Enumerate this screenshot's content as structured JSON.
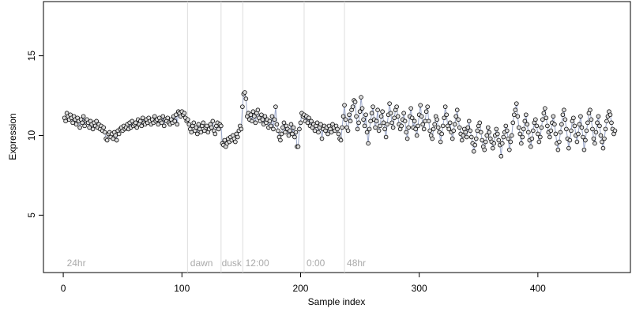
{
  "chart_data": {
    "type": "scatter",
    "xlabel": "Sample index",
    "ylabel": "Expression",
    "xlim": [
      -16.7,
      478
    ],
    "ylim": [
      1.4,
      18.4
    ],
    "xticks": [
      0,
      100,
      200,
      300,
      400
    ],
    "yticks": [
      5,
      10,
      15
    ],
    "vlines": [
      104.7,
      133,
      151.3,
      203,
      237
    ],
    "annotations": [
      {
        "x": 3,
        "y": 2,
        "text": "24hr"
      },
      {
        "x": 107,
        "y": 2,
        "text": "dawn"
      },
      {
        "x": 133.5,
        "y": 2,
        "text": "dusk"
      },
      {
        "x": 153.5,
        "y": 2,
        "text": "12:00"
      },
      {
        "x": 205,
        "y": 2,
        "text": "0:00"
      },
      {
        "x": 239,
        "y": 2,
        "text": "48hr"
      }
    ],
    "point_fill": "#dddddd",
    "line_color": "#9aa6c8",
    "x": [
      1,
      2,
      3,
      4,
      5,
      6,
      7,
      8,
      9,
      10,
      11,
      12,
      13,
      14,
      15,
      16,
      17,
      18,
      19,
      20,
      21,
      22,
      23,
      24,
      25,
      26,
      27,
      28,
      29,
      30,
      31,
      32,
      33,
      34,
      35,
      36,
      37,
      38,
      39,
      40,
      41,
      42,
      43,
      44,
      45,
      46,
      47,
      48,
      49,
      50,
      51,
      52,
      53,
      54,
      55,
      56,
      57,
      58,
      59,
      60,
      61,
      62,
      63,
      64,
      65,
      66,
      67,
      68,
      69,
      70,
      71,
      72,
      73,
      74,
      75,
      76,
      77,
      78,
      79,
      80,
      81,
      82,
      83,
      84,
      85,
      86,
      87,
      88,
      89,
      90,
      91,
      92,
      93,
      94,
      95,
      96,
      97,
      98,
      99,
      100,
      101,
      102,
      103,
      104,
      105,
      106,
      107,
      108,
      109,
      110,
      111,
      112,
      113,
      114,
      115,
      116,
      117,
      118,
      119,
      120,
      121,
      122,
      123,
      124,
      125,
      126,
      127,
      128,
      129,
      130,
      131,
      132,
      133,
      134,
      135,
      136,
      137,
      138,
      139,
      140,
      141,
      142,
      143,
      144,
      145,
      146,
      147,
      148,
      149,
      150,
      151,
      152,
      153,
      154,
      155,
      156,
      157,
      158,
      159,
      160,
      161,
      162,
      163,
      164,
      165,
      166,
      167,
      168,
      169,
      170,
      171,
      172,
      173,
      174,
      175,
      176,
      177,
      178,
      179,
      180,
      181,
      182,
      183,
      184,
      185,
      186,
      187,
      188,
      189,
      190,
      191,
      192,
      193,
      194,
      195,
      196,
      197,
      198,
      199,
      200,
      201,
      202,
      203,
      204,
      205,
      206,
      207,
      208,
      209,
      210,
      211,
      212,
      213,
      214,
      215,
      216,
      217,
      218,
      219,
      220,
      221,
      222,
      223,
      224,
      225,
      226,
      227,
      228,
      229,
      230,
      231,
      232,
      233,
      234,
      235,
      236,
      237,
      238,
      239,
      240,
      241,
      242,
      243,
      244,
      245,
      246,
      247,
      248,
      249,
      250,
      251,
      252,
      253,
      254,
      255,
      256,
      257,
      258,
      259,
      260,
      261,
      262,
      263,
      264,
      265,
      266,
      267,
      268,
      269,
      270,
      271,
      272,
      273,
      274,
      275,
      276,
      277,
      278,
      279,
      280,
      281,
      282,
      283,
      284,
      285,
      286,
      287,
      288,
      289,
      290,
      291,
      292,
      293,
      294,
      295,
      296,
      297,
      298,
      299,
      300,
      301,
      302,
      303,
      304,
      305,
      306,
      307,
      308,
      309,
      310,
      311,
      312,
      313,
      314,
      315,
      316,
      317,
      318,
      319,
      320,
      321,
      322,
      323,
      324,
      325,
      326,
      327,
      328,
      329,
      330,
      331,
      332,
      333,
      334,
      335,
      336,
      337,
      338,
      339,
      340,
      341,
      342,
      343,
      344,
      345,
      346,
      347,
      348,
      349,
      350,
      351,
      352,
      353,
      354,
      355,
      356,
      357,
      358,
      359,
      360,
      361,
      362,
      363,
      364,
      365,
      366,
      367,
      368,
      369,
      370,
      371,
      372,
      373,
      374,
      375,
      376,
      377,
      378,
      379,
      380,
      381,
      382,
      383,
      384,
      385,
      386,
      387,
      388,
      389,
      390,
      391,
      392,
      393,
      394,
      395,
      396,
      397,
      398,
      399,
      400,
      401,
      402,
      403,
      404,
      405,
      406,
      407,
      408,
      409,
      410,
      411,
      412,
      413,
      414,
      415,
      416,
      417,
      418,
      419,
      420,
      421,
      422,
      423,
      424,
      425,
      426,
      427,
      428,
      429,
      430,
      431,
      432,
      433,
      434,
      435,
      436,
      437,
      438,
      439,
      440,
      441,
      442,
      443,
      444,
      445,
      446,
      447,
      448,
      449,
      450,
      451,
      452,
      453,
      454,
      455,
      456,
      457,
      458,
      459,
      460,
      461,
      462,
      463,
      464,
      465
    ],
    "values": [
      11.1,
      10.9,
      11.4,
      11.2,
      11.0,
      11.3,
      11.1,
      10.8,
      11.2,
      11.0,
      10.7,
      11.1,
      10.9,
      10.5,
      11.0,
      10.8,
      11.2,
      10.6,
      10.9,
      11.0,
      10.8,
      10.5,
      10.9,
      10.7,
      10.4,
      10.8,
      10.6,
      10.9,
      10.5,
      10.7,
      10.4,
      10.6,
      10.3,
      10.5,
      10.2,
      9.8,
      9.7,
      10.1,
      10.2,
      9.9,
      10.1,
      9.8,
      10.2,
      10.0,
      9.7,
      10.3,
      10.1,
      10.4,
      10.5,
      10.3,
      10.6,
      10.4,
      10.5,
      10.7,
      10.4,
      10.8,
      10.5,
      10.9,
      10.6,
      10.7,
      10.8,
      10.5,
      11.0,
      10.7,
      10.9,
      10.6,
      11.1,
      10.8,
      10.7,
      11.0,
      10.8,
      11.1,
      10.9,
      10.7,
      11.0,
      10.8,
      11.2,
      10.9,
      11.0,
      10.7,
      11.1,
      10.9,
      10.8,
      11.2,
      10.6,
      11.0,
      10.9,
      11.1,
      10.8,
      10.7,
      11.0,
      10.8,
      11.2,
      10.9,
      11.3,
      10.7,
      11.5,
      11.4,
      11.2,
      11.5,
      11.3,
      11.4,
      11.1,
      10.9,
      11.0,
      10.7,
      10.4,
      10.2,
      10.6,
      10.8,
      10.3,
      10.5,
      10.1,
      10.7,
      10.4,
      10.2,
      10.6,
      10.8,
      10.3,
      10.5,
      10.6,
      10.2,
      10.4,
      10.7,
      10.5,
      10.9,
      10.3,
      10.1,
      10.6,
      10.8,
      10.4,
      10.7,
      10.6,
      9.5,
      9.4,
      9.7,
      9.3,
      9.5,
      9.8,
      9.6,
      9.9,
      9.7,
      10.0,
      9.8,
      9.6,
      10.1,
      9.9,
      10.3,
      10.6,
      10.4,
      11.8,
      12.6,
      12.7,
      12.3,
      11.2,
      11.4,
      11.0,
      11.3,
      10.9,
      11.5,
      11.2,
      10.8,
      11.4,
      11.6,
      11.1,
      10.9,
      11.3,
      11.0,
      10.7,
      11.2,
      10.8,
      11.0,
      10.5,
      10.9,
      10.6,
      11.2,
      10.4,
      11.0,
      11.8,
      10.7,
      10.3,
      9.9,
      9.7,
      10.1,
      10.5,
      10.8,
      10.2,
      10.6,
      10.4,
      10.0,
      10.3,
      10.7,
      10.1,
      10.5,
      9.9,
      10.2,
      9.3,
      9.3,
      10.4,
      10.8,
      11.4,
      11.2,
      11.3,
      10.9,
      11.2,
      10.8,
      11.1,
      10.6,
      10.9,
      10.5,
      10.7,
      10.3,
      10.6,
      10.8,
      10.2,
      10.5,
      10.7,
      9.8,
      10.4,
      10.6,
      10.3,
      10.5,
      10.1,
      10.6,
      10.4,
      10.2,
      10.7,
      10.5,
      10.3,
      10.6,
      10.4,
      10.1,
      9.8,
      9.7,
      10.5,
      11.2,
      11.9,
      11.0,
      10.5,
      10.3,
      11.3,
      10.9,
      11.6,
      11.8,
      12.2,
      12.1,
      11.2,
      10.4,
      10.8,
      11.5,
      12.4,
      11.7,
      11.0,
      10.6,
      11.3,
      10.2,
      9.5,
      10.4,
      10.9,
      11.4,
      11.8,
      11.0,
      10.5,
      10.9,
      11.6,
      10.3,
      10.6,
      11.2,
      11.5,
      10.8,
      10.4,
      9.9,
      10.7,
      11.3,
      12.0,
      11.4,
      10.8,
      10.5,
      11.1,
      11.6,
      11.8,
      11.2,
      10.7,
      10.4,
      10.6,
      11.0,
      11.4,
      10.9,
      10.2,
      9.8,
      10.5,
      11.2,
      11.7,
      11.1,
      10.5,
      10.9,
      10.4,
      10.0,
      10.6,
      11.3,
      11.9,
      11.2,
      10.7,
      10.4,
      10.9,
      11.5,
      11.8,
      10.9,
      10.3,
      10.0,
      9.8,
      10.4,
      10.7,
      11.2,
      11.0,
      10.5,
      10.2,
      9.6,
      10.1,
      10.6,
      11.1,
      11.8,
      11.3,
      10.6,
      10.4,
      10.8,
      10.2,
      9.8,
      10.3,
      10.7,
      11.2,
      11.6,
      11.0,
      10.5,
      10.1,
      9.7,
      10.0,
      10.4,
      10.2,
      9.9,
      10.5,
      10.9,
      10.3,
      9.9,
      9.5,
      9.0,
      9.4,
      9.8,
      10.3,
      10.6,
      10.8,
      10.2,
      9.7,
      9.3,
      9.1,
      9.6,
      10.0,
      10.5,
      10.2,
      9.8,
      9.6,
      9.2,
      9.5,
      10.0,
      10.4,
      10.1,
      9.7,
      9.4,
      8.7,
      9.5,
      9.9,
      10.2,
      10.6,
      10.3,
      9.8,
      9.1,
      9.6,
      10.0,
      10.8,
      11.3,
      11.6,
      12.0,
      11.2,
      10.5,
      10.1,
      9.5,
      9.9,
      10.4,
      10.9,
      11.3,
      10.7,
      10.2,
      9.7,
      9.3,
      9.8,
      10.3,
      10.8,
      11.0,
      10.6,
      10.1,
      9.6,
      9.9,
      10.5,
      11.0,
      11.4,
      11.7,
      11.1,
      10.6,
      10.2,
      9.9,
      10.3,
      10.8,
      11.2,
      10.7,
      10.1,
      9.5,
      9.1,
      9.6,
      10.2,
      10.7,
      11.3,
      11.6,
      11.0,
      10.4,
      9.8,
      9.2,
      9.7,
      10.3,
      10.9,
      11.1,
      10.6,
      10.0,
      9.6,
      10.1,
      10.7,
      11.2,
      10.5,
      9.9,
      9.1,
      9.7,
      10.3,
      10.8,
      11.4,
      11.6,
      11.0,
      10.4,
      9.8,
      9.5,
      10.2,
      10.8,
      11.2,
      10.6,
      10.0,
      9.6,
      9.2,
      9.8,
      10.4,
      10.9,
      11.2,
      11.5,
      11.3,
      10.8,
      10.4,
      10.1,
      10.3
    ]
  }
}
